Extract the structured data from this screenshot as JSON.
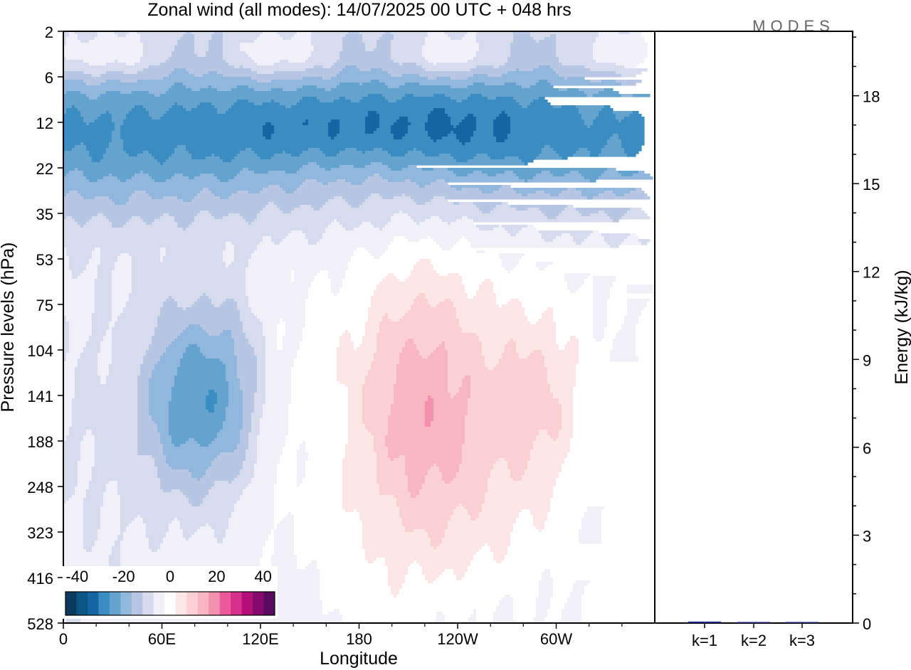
{
  "chart_data": [
    {
      "type": "heatmap",
      "title": "Zonal wind (all modes):  14/07/2025  00 UTC  + 048 hrs",
      "logo": "MODES",
      "xlabel": "Longitude",
      "ylabel": "Pressure levels (hPa)",
      "x_ticks": [
        "0",
        "60E",
        "120E",
        "180",
        "120W",
        "60W"
      ],
      "x_range_deg": [
        0,
        360
      ],
      "y_ticks": [
        "2",
        "6",
        "12",
        "22",
        "35",
        "53",
        "75",
        "104",
        "141",
        "188",
        "248",
        "323",
        "416",
        "528"
      ],
      "colorbar": {
        "ticks": [
          "-40",
          "-20",
          "0",
          "20",
          "40"
        ],
        "range": [
          -45,
          45
        ],
        "step": 5,
        "colors": [
          "#0b3a5f",
          "#0d5487",
          "#1565a3",
          "#3a8cc2",
          "#63a3ce",
          "#91b8dc",
          "#b7c7e3",
          "#d6dcee",
          "#f1eff7",
          "#ffffff",
          "#fde6e6",
          "#fbd0d3",
          "#f8b6c0",
          "#f58fb0",
          "#ec5a9c",
          "#d7308a",
          "#b30f7a",
          "#860a6e",
          "#5a0a5e"
        ]
      },
      "features": [
        {
          "lon": 80,
          "lev_index": 8.2,
          "value": -24
        },
        {
          "lon": 225,
          "lev_index": 8.0,
          "value": 16
        },
        {
          "lon": 290,
          "lev_index": 7.9,
          "value": 17
        },
        {
          "lon": 150,
          "lev_index": 2.1,
          "value": -26
        },
        {
          "lon": 250,
          "lev_index": 2.0,
          "value": -27
        }
      ]
    },
    {
      "type": "bar",
      "ylabel": "Energy (kJ/kg)",
      "categories": [
        "k=1",
        "k=2",
        "k=3"
      ],
      "values": [
        0.05,
        0.02,
        0.01
      ],
      "y_ticks": [
        "0",
        "3",
        "6",
        "9",
        "12",
        "15",
        "18"
      ],
      "ylim": [
        0,
        20.2
      ],
      "bar_color": "#1a237e"
    }
  ]
}
